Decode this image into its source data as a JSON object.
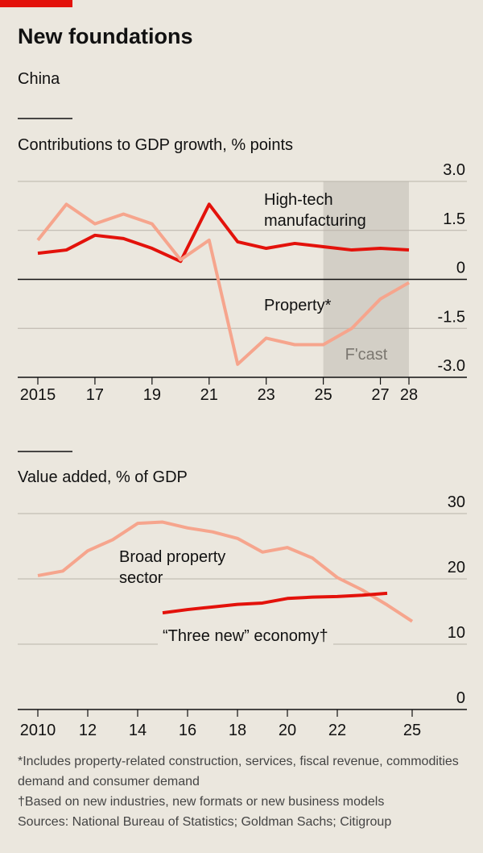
{
  "title": "New foundations",
  "subtitle": "China",
  "footnotes": [
    "*Includes property-related construction, services, fiscal revenue, commodities demand and consumer demand",
    "†Based on new industries, new formats or new business models",
    "Sources: National Bureau of Statistics; Goldman Sachs; Citigroup"
  ],
  "chart_data": [
    {
      "type": "line",
      "title": "Contributions to GDP growth, % points",
      "x": [
        2015,
        2016,
        2017,
        2018,
        2019,
        2020,
        2021,
        2022,
        2023,
        2024,
        2025,
        2026,
        2027,
        2028
      ],
      "series": [
        {
          "name": "High-tech manufacturing",
          "color": "#e3120b",
          "values": [
            0.8,
            0.9,
            1.35,
            1.25,
            0.95,
            0.55,
            2.3,
            1.15,
            0.95,
            1.1,
            1.0,
            0.9,
            0.95,
            0.9
          ]
        },
        {
          "name": "Property*",
          "color": "#f6a58d",
          "values": [
            1.2,
            2.3,
            1.7,
            2.0,
            1.7,
            0.6,
            1.2,
            -2.6,
            -1.8,
            -2.0,
            -2.0,
            -1.5,
            -0.6,
            -0.1
          ]
        }
      ],
      "forecast": {
        "label": "F'cast",
        "start": 2025,
        "end": 2028
      },
      "xlim": [
        2015,
        2028
      ],
      "ylim": [
        -3,
        3
      ],
      "xticks": [
        2015,
        {
          "value": 2017,
          "label": "17"
        },
        {
          "value": 2019,
          "label": "19"
        },
        {
          "value": 2021,
          "label": "21"
        },
        {
          "value": 2023,
          "label": "23"
        },
        {
          "value": 2025,
          "label": "25"
        },
        {
          "value": 2027,
          "label": "27"
        },
        {
          "value": 2028,
          "label": "28"
        }
      ],
      "yticks": [
        {
          "value": 3,
          "label": "3.0"
        },
        1.5,
        0,
        -1.5,
        {
          "value": -3,
          "label": "-3.0"
        }
      ],
      "grid": true
    },
    {
      "type": "line",
      "title": "Value added, % of GDP",
      "x": [
        2010,
        2011,
        2012,
        2013,
        2014,
        2015,
        2016,
        2017,
        2018,
        2019,
        2020,
        2021,
        2022,
        2023,
        2024,
        2025
      ],
      "series": [
        {
          "name": "Broad property sector",
          "color": "#f6a58d",
          "values": [
            20.5,
            21.2,
            24.3,
            26,
            28.5,
            28.7,
            27.8,
            27.2,
            26.2,
            24.1,
            24.8,
            23.2,
            20.2,
            18.3,
            16,
            13.5
          ]
        },
        {
          "name": "“Three new” economy†",
          "color": "#e3120b",
          "values": [
            null,
            null,
            null,
            null,
            null,
            14.8,
            15.3,
            15.7,
            16.1,
            16.3,
            17,
            17.2,
            17.3,
            17.5,
            17.8,
            null
          ]
        }
      ],
      "xlim": [
        2010,
        2025
      ],
      "ylim": [
        0,
        30
      ],
      "xticks": [
        2010,
        {
          "value": 2012,
          "label": "12"
        },
        {
          "value": 2014,
          "label": "14"
        },
        {
          "value": 2016,
          "label": "16"
        },
        {
          "value": 2018,
          "label": "18"
        },
        {
          "value": 2020,
          "label": "20"
        },
        {
          "value": 2022,
          "label": "22"
        },
        {
          "value": 2025,
          "label": "25"
        }
      ],
      "yticks": [
        30,
        20,
        10,
        0
      ],
      "grid": true
    }
  ]
}
